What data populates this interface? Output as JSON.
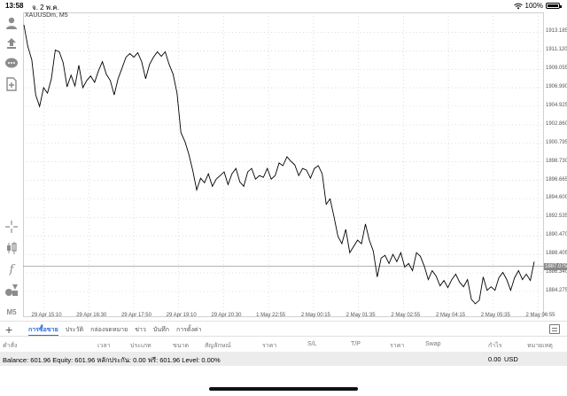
{
  "status": {
    "time": "13:58",
    "date": "จ. 2 พ.ค.",
    "battery": "100%"
  },
  "chart": {
    "symbol_label": "XAUUSDm, M5",
    "current_price": "1887.075",
    "colors": {
      "line": "#000000",
      "grid": "#c8c8c8",
      "accent": "#2a6ddc"
    }
  },
  "left_toolbar": {
    "icons": [
      "person-icon",
      "upload-icon",
      "chat-icon",
      "document-add-icon",
      "crosshair-icon",
      "candlestick-icon",
      "function-icon",
      "shapes-icon"
    ],
    "timeframe": "M5"
  },
  "tabs": {
    "items": [
      "การซื้อขาย",
      "ประวัติ",
      "กล่องจดหมาย",
      "ข่าว",
      "บันทึก",
      "การตั้งค่า"
    ],
    "active": "การซื้อขาย"
  },
  "columns": [
    "คำสั่ง",
    "เวลา",
    "ประเภท",
    "ขนาด",
    "สัญลักษณ์",
    "ราคา",
    "S/L",
    "T/P",
    "ราคา",
    "Swap",
    "กำไร",
    "หมายเหตุ"
  ],
  "balance": {
    "summary": "Balance: 601.96 Equity: 601.96 หลักประกัน: 0.00 ฟรี: 601.96 Level: 0.00%",
    "total": "0.00",
    "currency": "USD"
  },
  "chart_data": {
    "type": "line",
    "title": "XAUUSDm, M5",
    "xlabel": "",
    "ylabel": "",
    "ylim": [
      1882.2,
      1915.2
    ],
    "x_tick_labels": [
      "29 Apr 15:10",
      "29 Apr 16:30",
      "29 Apr 17:50",
      "29 Apr 19:10",
      "29 Apr 20:30",
      "1 May 22:55",
      "2 May 00:15",
      "2 May 01:35",
      "2 May 02:55",
      "2 May 04:15",
      "2 May 05:35",
      "2 May 06:55"
    ],
    "y_tick_labels": [
      "1913.185",
      "1911.120",
      "1909.055",
      "1906.990",
      "1904.925",
      "1902.860",
      "1900.795",
      "1898.730",
      "1896.665",
      "1894.600",
      "1892.535",
      "1890.470",
      "1888.405",
      "1886.340",
      "1884.275"
    ],
    "grid": true,
    "series": [
      {
        "values": [
          1914.0,
          1911.6,
          1910.1,
          1906.2,
          1904.9,
          1907.0,
          1906.4,
          1908.0,
          1911.2,
          1911.0,
          1909.8,
          1907.1,
          1908.4,
          1907.2,
          1909.5,
          1907.0,
          1907.8,
          1908.3,
          1907.6,
          1908.9,
          1909.9,
          1908.5,
          1907.8,
          1906.2,
          1908.0,
          1909.2,
          1910.4,
          1910.8,
          1910.4,
          1910.9,
          1909.9,
          1908.0,
          1909.6,
          1910.4,
          1911.0,
          1910.5,
          1911.0,
          1909.6,
          1908.5,
          1906.4,
          1902.0,
          1901.0,
          1899.6,
          1897.8,
          1895.6,
          1896.9,
          1896.4,
          1897.4,
          1896.0,
          1896.8,
          1897.2,
          1897.6,
          1896.2,
          1897.4,
          1898.0,
          1896.5,
          1896.0,
          1897.6,
          1898.0,
          1896.8,
          1897.2,
          1897.0,
          1898.0,
          1896.8,
          1897.2,
          1898.6,
          1898.3,
          1899.3,
          1898.8,
          1898.4,
          1897.2,
          1898.0,
          1897.8,
          1896.9,
          1898.0,
          1898.3,
          1897.4,
          1894.0,
          1894.6,
          1892.6,
          1890.4,
          1889.6,
          1891.2,
          1888.6,
          1889.3,
          1890.0,
          1889.6,
          1891.8,
          1890.0,
          1888.8,
          1885.9,
          1888.0,
          1888.3,
          1887.4,
          1888.4,
          1887.6,
          1888.6,
          1887.0,
          1887.4,
          1886.6,
          1888.6,
          1888.2,
          1887.1,
          1885.6,
          1886.6,
          1886.0,
          1884.9,
          1885.5,
          1884.7,
          1885.6,
          1886.2,
          1885.3,
          1884.8,
          1885.6,
          1883.4,
          1882.9,
          1883.3,
          1885.9,
          1884.4,
          1884.8,
          1884.4,
          1885.8,
          1886.4,
          1885.6,
          1884.4,
          1885.8,
          1886.6,
          1885.6,
          1886.2,
          1885.5,
          1887.6
        ]
      }
    ]
  }
}
